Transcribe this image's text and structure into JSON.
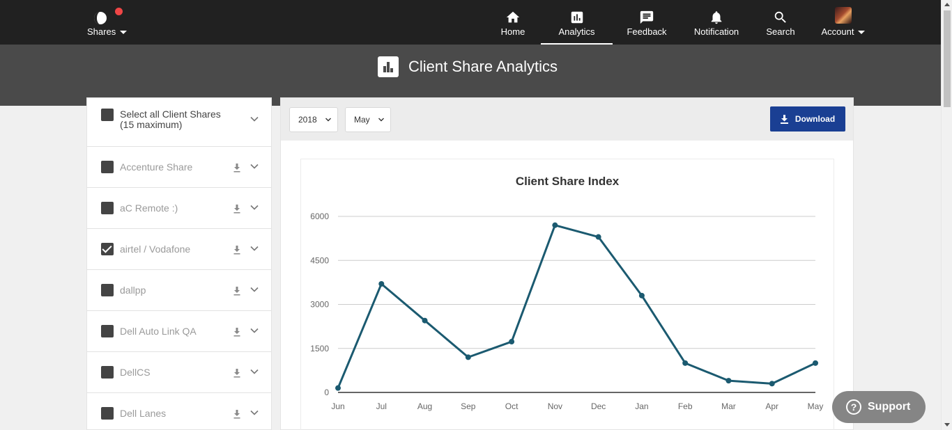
{
  "nav": {
    "brand_label": "Shares",
    "items": [
      {
        "label": "Home",
        "icon": "home-icon"
      },
      {
        "label": "Analytics",
        "icon": "analytics-icon",
        "active": true
      },
      {
        "label": "Feedback",
        "icon": "feedback-icon"
      },
      {
        "label": "Notification",
        "icon": "bell-icon"
      },
      {
        "label": "Search",
        "icon": "search-icon"
      },
      {
        "label": "Account",
        "icon": "avatar"
      }
    ]
  },
  "page": {
    "title": "Client Share Analytics"
  },
  "sidebar": {
    "select_all": {
      "line1": "Select all Client Shares",
      "line2": "(15 maximum)",
      "checked": false
    },
    "items": [
      {
        "label": "Accenture Share",
        "checked": false
      },
      {
        "label": "aC Remote :)",
        "checked": false
      },
      {
        "label": "airtel / Vodafone",
        "checked": true
      },
      {
        "label": "dallpp",
        "checked": false
      },
      {
        "label": "Dell Auto Link QA",
        "checked": false
      },
      {
        "label": "DellCS",
        "checked": false
      },
      {
        "label": "Dell Lanes",
        "checked": false
      }
    ]
  },
  "filters": {
    "year": "2018",
    "month": "May"
  },
  "download_label": "Download",
  "support_label": "Support",
  "colors": {
    "line": "#1b5a70",
    "download": "#1a3f93",
    "notification_dot": "#f04646"
  },
  "chart_data": {
    "type": "line",
    "title": "Client Share Index",
    "categories": [
      "Jun",
      "Jul",
      "Aug",
      "Sep",
      "Oct",
      "Nov",
      "Dec",
      "Jan",
      "Feb",
      "Mar",
      "Apr",
      "May"
    ],
    "values": [
      150,
      3700,
      2450,
      1200,
      1730,
      5700,
      5300,
      3300,
      1000,
      400,
      300,
      1000
    ],
    "yticks": [
      0,
      1500,
      3000,
      4500,
      6000
    ],
    "ylim": [
      0,
      6000
    ],
    "grid": true
  }
}
